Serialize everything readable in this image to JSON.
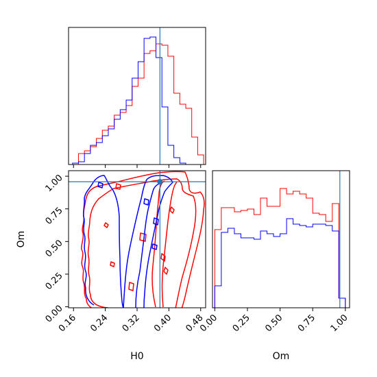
{
  "chart_data": {
    "type": "corner",
    "parameters": [
      "H0",
      "Om"
    ],
    "truth": {
      "H0": 0.3775,
      "Om": 0.958
    },
    "truth_line_color": "#1f77b4",
    "series": [
      {
        "color": "#ff0000"
      },
      {
        "color": "#0000ff"
      }
    ],
    "panels": [
      {
        "id": "hist-H0",
        "type": "histogram",
        "xlim": [
          0.1475,
          0.4925
        ],
        "ylim": [
          0,
          1
        ],
        "show_tick_labels": false,
        "xticks": [
          0.16,
          0.24,
          0.32,
          0.4,
          0.48
        ],
        "bin_edges": [
          0.1575,
          0.1725,
          0.1875,
          0.2025,
          0.2175,
          0.2325,
          0.2475,
          0.2625,
          0.2775,
          0.2925,
          0.3075,
          0.3225,
          0.3375,
          0.3525,
          0.3675,
          0.3825,
          0.3975,
          0.4125,
          0.4275,
          0.4425,
          0.4575,
          0.4725,
          0.4875,
          0.5025
        ],
        "series_counts": [
          [
            0.0,
            0.08,
            0.1,
            0.13,
            0.19,
            0.25,
            0.28,
            0.36,
            0.38,
            0.43,
            0.57,
            0.63,
            0.81,
            0.83,
            0.88,
            0.87,
            0.79,
            0.52,
            0.44,
            0.41,
            0.2,
            0.07,
            0.0
          ],
          [
            0.01,
            0.02,
            0.08,
            0.14,
            0.16,
            0.21,
            0.26,
            0.33,
            0.4,
            0.47,
            0.63,
            0.75,
            0.92,
            0.93,
            0.78,
            0.42,
            0.14,
            0.05,
            0.01,
            0.0,
            0.0,
            0.0,
            0.0
          ]
        ]
      },
      {
        "id": "contour-H0-Om",
        "type": "contour",
        "xlabel": "H0",
        "ylabel": "Om",
        "xlim": [
          0.1475,
          0.4925
        ],
        "ylim": [
          -0.0075,
          1.0425
        ],
        "xticks": [
          "0.16",
          "0.24",
          "0.32",
          "0.40",
          "0.48"
        ],
        "yticks": [
          "0.00",
          "0.25",
          "0.50",
          "0.75",
          "1.00"
        ],
        "truth_marker": {
          "x": 0.3775,
          "y": 0.958
        }
      },
      {
        "id": "hist-Om",
        "type": "histogram",
        "xlabel": "Om",
        "xlim": [
          -0.0175,
          1.0325
        ],
        "ylim": [
          0,
          1
        ],
        "xticks": [
          "0.00",
          "0.25",
          "0.50",
          "0.75",
          "1.00"
        ],
        "bin_edges": [
          0.0,
          0.05,
          0.1,
          0.15,
          0.2,
          0.25,
          0.3,
          0.35,
          0.4,
          0.45,
          0.5,
          0.55,
          0.6,
          0.65,
          0.7,
          0.75,
          0.8,
          0.85,
          0.9,
          0.95,
          1.0
        ],
        "series_counts": [
          [
            0.57,
            0.73,
            0.73,
            0.7,
            0.71,
            0.72,
            0.68,
            0.8,
            0.74,
            0.74,
            0.87,
            0.83,
            0.85,
            0.83,
            0.8,
            0.69,
            0.68,
            0.63,
            0.76,
            0.07
          ],
          [
            0.16,
            0.55,
            0.58,
            0.54,
            0.51,
            0.51,
            0.5,
            0.56,
            0.54,
            0.52,
            0.54,
            0.65,
            0.61,
            0.6,
            0.59,
            0.61,
            0.61,
            0.6,
            0.56,
            0.07
          ]
        ]
      }
    ]
  }
}
